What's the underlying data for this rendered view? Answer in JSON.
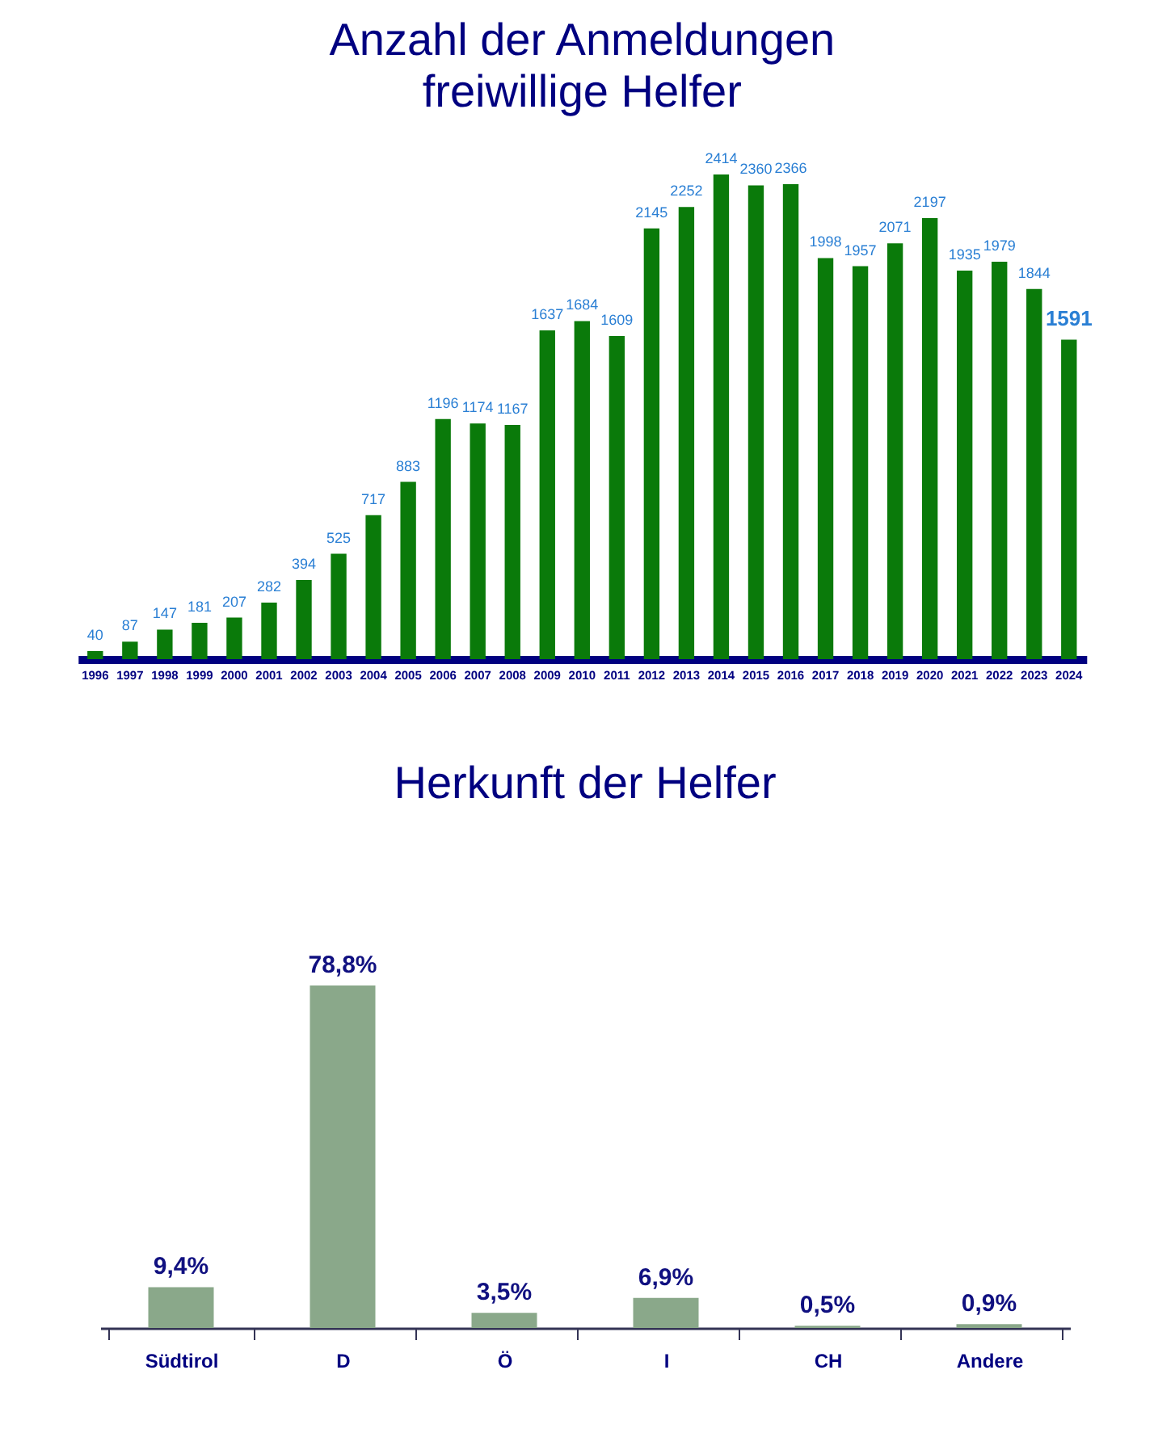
{
  "chart_data": [
    {
      "type": "bar",
      "title": "Anzahl der Anmeldungen\nfreiwillige Helfer",
      "categories": [
        "1996",
        "1997",
        "1998",
        "1999",
        "2000",
        "2001",
        "2002",
        "2003",
        "2004",
        "2005",
        "2006",
        "2007",
        "2008",
        "2009",
        "2010",
        "2011",
        "2012",
        "2013",
        "2014",
        "2015",
        "2016",
        "2017",
        "2018",
        "2019",
        "2020",
        "2021",
        "2022",
        "2023",
        "2024"
      ],
      "values": [
        40,
        87,
        147,
        181,
        207,
        282,
        394,
        525,
        717,
        883,
        1196,
        1174,
        1167,
        1637,
        1684,
        1609,
        2145,
        2252,
        2414,
        2360,
        2366,
        1998,
        1957,
        2071,
        2197,
        1935,
        1979,
        1844,
        1591
      ],
      "color": "#0a7a0a",
      "data_labels": true
    },
    {
      "type": "bar",
      "title": "Herkunft der Helfer",
      "categories": [
        "Südtirol",
        "D",
        "Ö",
        "I",
        "CH",
        "Andere"
      ],
      "values": [
        9.4,
        78.8,
        3.5,
        6.9,
        0.5,
        0.9
      ],
      "value_labels": [
        "9,4%",
        "78,8%",
        "3,5%",
        "6,9%",
        "0,5%",
        "0,9%"
      ],
      "color": "#8aa88a"
    }
  ]
}
